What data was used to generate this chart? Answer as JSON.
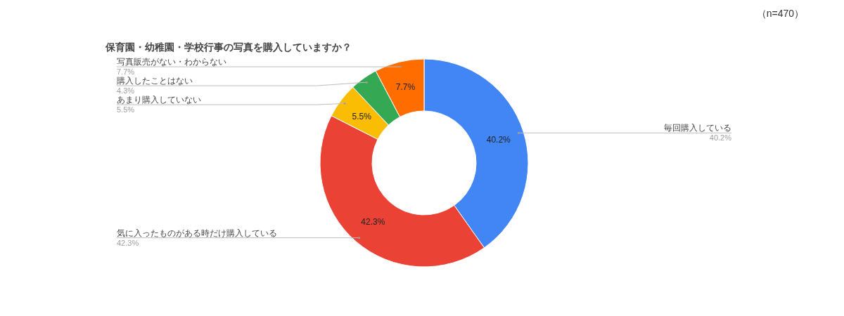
{
  "chart_data": {
    "type": "donut",
    "title": "保育園・幼稚園・学校行事の写真を購入していますか？",
    "annotations": [
      "（n=470）"
    ],
    "categories": [
      "毎回購入している",
      "気に入ったものがある時だけ購入している",
      "あまり購入していない",
      "購入したことはない",
      "写真販売がない・わからない"
    ],
    "values": [
      40.2,
      42.3,
      5.5,
      4.3,
      7.7
    ],
    "colors": [
      "#4285f4",
      "#ea4335",
      "#fbbc04",
      "#34a853",
      "#ff6d01"
    ],
    "value_labels": [
      "40.2%",
      "42.3%",
      "5.5%",
      "4.3%",
      "7.7%"
    ]
  }
}
